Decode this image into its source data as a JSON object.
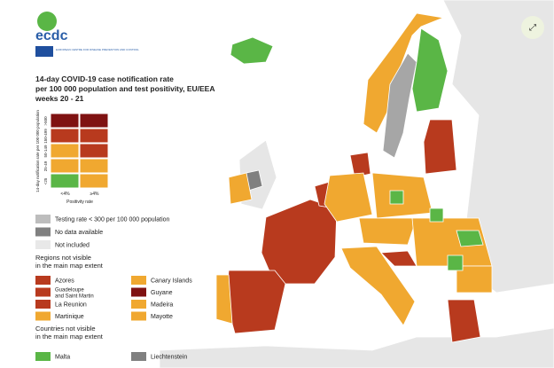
{
  "logo": {
    "name": "ecdc",
    "subtitle": "EUROPEAN CENTRE FOR DISEASE PREVENTION AND CONTROL"
  },
  "header": {
    "title_lines": [
      "14-day COVID-19 case notification rate",
      "per 100 000 population and test positivity, EU/EEA",
      "weeks 20 - 21"
    ]
  },
  "matrix": {
    "y_axis_label": "14-day notification rate per 100 000 population",
    "y_ticks": [
      ">500",
      "150-499",
      "50-149",
      "25-49",
      "<25"
    ],
    "x_axis_label": "Positivity rate",
    "x_ticks": [
      "<4%",
      "≥4%"
    ],
    "cells": [
      [
        "#7f1212",
        "#7f1212"
      ],
      [
        "#b83a1e",
        "#b83a1e"
      ],
      [
        "#f0a830",
        "#b83a1e"
      ],
      [
        "#f0a830",
        "#f0a830"
      ],
      [
        "#5ab646",
        "#f0a830"
      ]
    ]
  },
  "legend": {
    "items": [
      {
        "label": "Testing rate < 300 per 100 000 population",
        "color": "#bdbdbd"
      },
      {
        "label": "No data available",
        "color": "#808080"
      },
      {
        "label": "Not included",
        "color": "#e8e8e8"
      }
    ]
  },
  "regions": {
    "title_lines": [
      "Regions not visible",
      "in the main map extent"
    ],
    "items": [
      {
        "label": "Azores",
        "color": "#b83a1e"
      },
      {
        "label": "Canary Islands",
        "color": "#f0a830"
      },
      {
        "label": [
          "Guadeloupe",
          "and Saint Martin"
        ],
        "color": "#b83a1e"
      },
      {
        "label": "Guyane",
        "color": "#7f1212"
      },
      {
        "label": "La Reunion",
        "color": "#b83a1e"
      },
      {
        "label": "Madeira",
        "color": "#f0a830"
      },
      {
        "label": "Martinique",
        "color": "#f0a830"
      },
      {
        "label": "Mayotte",
        "color": "#f0a830"
      }
    ]
  },
  "countries": {
    "title_lines": [
      "Countries not visible",
      "in the main map extent"
    ],
    "items": [
      {
        "label": "Malta",
        "color": "#5ab646"
      },
      {
        "label": "Liechtenstein",
        "color": "#808080"
      }
    ]
  }
}
